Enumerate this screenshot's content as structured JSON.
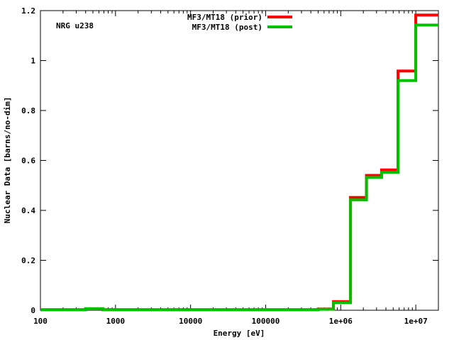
{
  "chart_data": {
    "type": "line",
    "annotation": "NRG u238",
    "xlabel": "Energy [eV]",
    "ylabel": "Nuclear Data [barns/no-dim]",
    "x_scale": "log",
    "xlim": [
      100,
      20000000
    ],
    "ylim": [
      0,
      1.2
    ],
    "grid": false,
    "legend_position": "top-center",
    "x_ticks": [
      {
        "value": 100,
        "label": "100"
      },
      {
        "value": 1000,
        "label": "1000"
      },
      {
        "value": 10000,
        "label": "10000"
      },
      {
        "value": 100000,
        "label": "100000"
      },
      {
        "value": 1000000,
        "label": "1e+06"
      },
      {
        "value": 10000000,
        "label": "1e+07"
      }
    ],
    "y_ticks": [
      {
        "value": 0,
        "label": "0"
      },
      {
        "value": 0.2,
        "label": "0.2"
      },
      {
        "value": 0.4,
        "label": "0.4"
      },
      {
        "value": 0.6,
        "label": "0.6"
      },
      {
        "value": 0.8,
        "label": "0.8"
      },
      {
        "value": 1,
        "label": "1"
      },
      {
        "value": 1.2,
        "label": "1.2"
      }
    ],
    "bin_edges": [
      100,
      400,
      680,
      500000,
      800000,
      1350000,
      2200000,
      3500000,
      5800000,
      10000000,
      20000000
    ],
    "series": [
      {
        "name": "MF3/MT18 (prior)",
        "color": "#ff0000",
        "values": [
          0.002,
          0.006,
          0.002,
          0.005,
          0.035,
          0.452,
          0.54,
          0.562,
          0.958,
          1.182
        ]
      },
      {
        "name": "MF3/MT18 (post)",
        "color": "#00c000",
        "values": [
          0.002,
          0.006,
          0.002,
          0.004,
          0.03,
          0.442,
          0.532,
          0.552,
          0.92,
          1.142
        ]
      }
    ]
  }
}
